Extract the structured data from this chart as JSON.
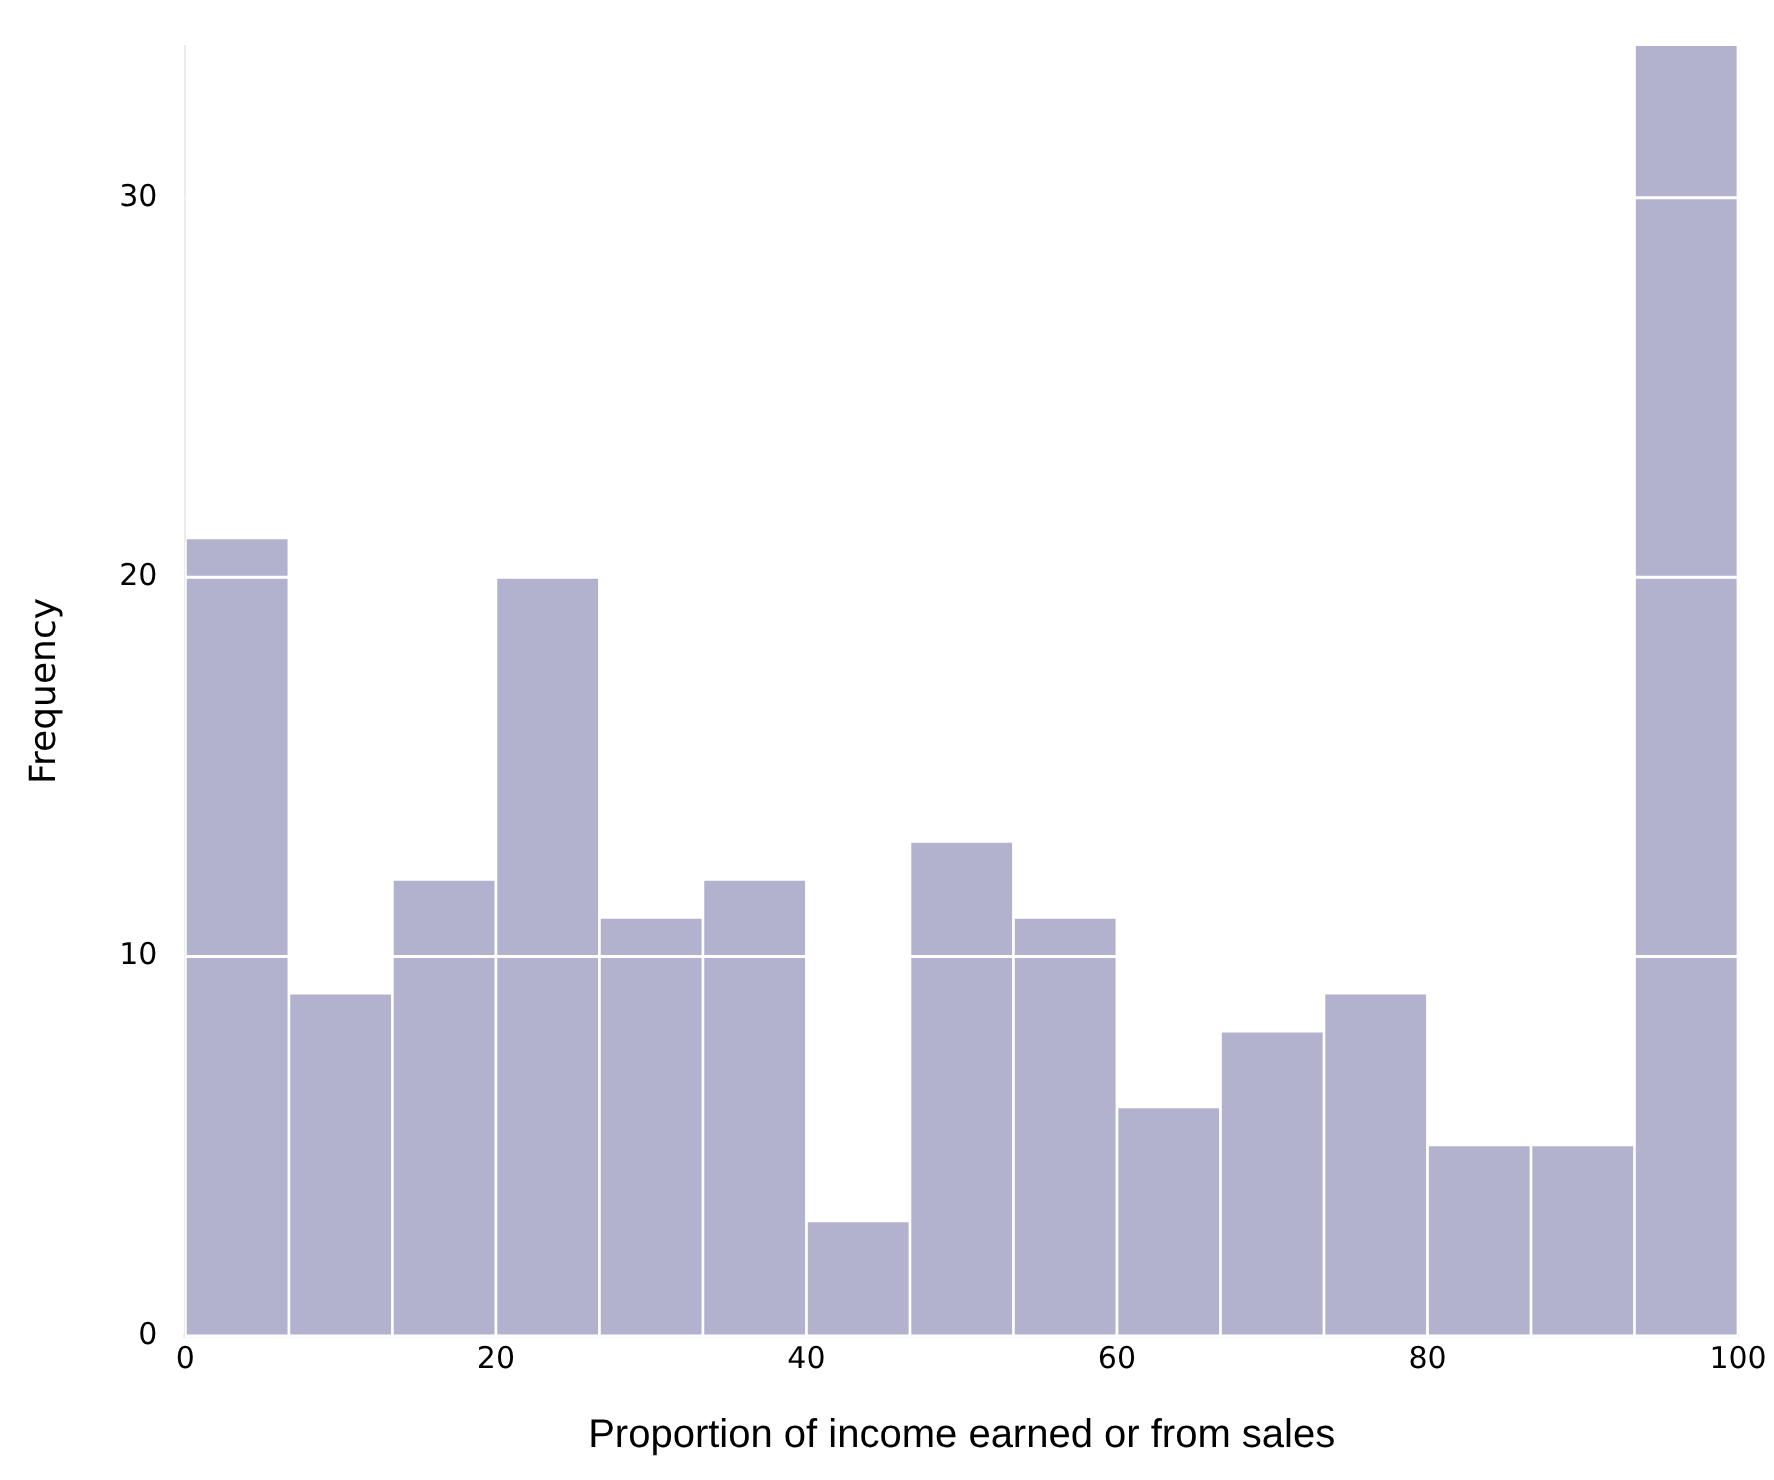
{
  "chart_data": {
    "type": "histogram",
    "xlabel": "Proportion of income earned or from sales",
    "ylabel": "Frequency",
    "bins": [
      0,
      6.67,
      13.33,
      20,
      26.67,
      33.33,
      40,
      46.67,
      53.33,
      60,
      66.67,
      73.33,
      80,
      86.67,
      93.33,
      100
    ],
    "values": [
      21,
      9,
      12,
      20,
      11,
      12,
      3,
      13,
      11,
      6,
      8,
      9,
      5,
      5,
      34
    ],
    "color": "#b2b2cf",
    "xlim": [
      0,
      100
    ],
    "xticks": [
      0,
      20,
      40,
      60,
      80,
      100
    ],
    "ylim": [
      0,
      34
    ],
    "yticks": [
      0,
      10,
      20,
      30
    ],
    "grid": "y",
    "legend": false
  }
}
